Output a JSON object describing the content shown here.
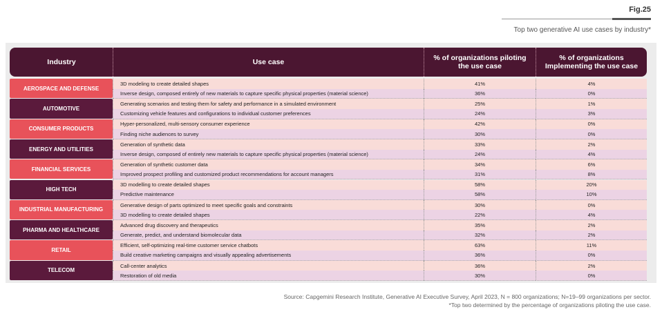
{
  "figure": {
    "label": "Fig.25",
    "subtitle": "Top two generative AI use cases by industry*"
  },
  "table": {
    "header": [
      "Industry",
      "Use case",
      "% of organizations piloting the use case",
      "% of organizations Implementing the use case"
    ],
    "rows": [
      {
        "industry": "AEROSPACE AND DEFENSE",
        "cases": [
          {
            "use_case": "3D modeling to create detailed shapes",
            "piloting": "41%",
            "implementing": "4%"
          },
          {
            "use_case": "Inverse design, composed entirely of new materials to capture specific physical properties (material science)",
            "piloting": "36%",
            "implementing": "0%"
          }
        ]
      },
      {
        "industry": "AUTOMOTIVE",
        "cases": [
          {
            "use_case": "Generating scenarios and testing them for safety and performance in a simulated environment",
            "piloting": "25%",
            "implementing": "1%"
          },
          {
            "use_case": "Customizing vehicle features and configurations to individual customer preferences",
            "piloting": "24%",
            "implementing": "3%"
          }
        ]
      },
      {
        "industry": "CONSUMER PRODUCTS",
        "cases": [
          {
            "use_case": "Hyper-personalized, multi-sensory consumer experience",
            "piloting": "42%",
            "implementing": "0%"
          },
          {
            "use_case": "Finding niche audiences to survey",
            "piloting": "30%",
            "implementing": "0%"
          }
        ]
      },
      {
        "industry": "ENERGY AND UTILITIES",
        "cases": [
          {
            "use_case": "Generation of synthetic data",
            "piloting": "33%",
            "implementing": "2%"
          },
          {
            "use_case": "Inverse design, composed of entirely new materials to capture specific physical properties (material science)",
            "piloting": "24%",
            "implementing": "4%"
          }
        ]
      },
      {
        "industry": "FINANCIAL SERVICES",
        "cases": [
          {
            "use_case": "Generation of synthetic customer data",
            "piloting": "34%",
            "implementing": "6%"
          },
          {
            "use_case": "Improved prospect profiling and customized product recommendations for account managers",
            "piloting": "31%",
            "implementing": "8%"
          }
        ]
      },
      {
        "industry": "HIGH TECH",
        "cases": [
          {
            "use_case": "3D modelling to create detailed shapes",
            "piloting": "58%",
            "implementing": "20%"
          },
          {
            "use_case": "Predictive maintenance",
            "piloting": "58%",
            "implementing": "10%"
          }
        ]
      },
      {
        "industry": "INDUSTRIAL MANUFACTURING",
        "cases": [
          {
            "use_case": "Generative design of parts optimized to meet specific goals and constraints",
            "piloting": "30%",
            "implementing": "0%"
          },
          {
            "use_case": "3D modelling to create detailed shapes",
            "piloting": "22%",
            "implementing": "4%"
          }
        ]
      },
      {
        "industry": "PHARMA AND HEALTHCARE",
        "cases": [
          {
            "use_case": "Advanced drug discovery and therapeutics",
            "piloting": "35%",
            "implementing": "2%"
          },
          {
            "use_case": "Generate, predict, and understand biomolecular data",
            "piloting": "32%",
            "implementing": "2%"
          }
        ]
      },
      {
        "industry": "RETAIL",
        "cases": [
          {
            "use_case": "Efficient, self-optimizing real-time customer service chatbots",
            "piloting": "63%",
            "implementing": "11%"
          },
          {
            "use_case": "Build creative marketing campaigns and visually appealing advertisements",
            "piloting": "36%",
            "implementing": "0%"
          }
        ]
      },
      {
        "industry": "TELECOM",
        "cases": [
          {
            "use_case": "Call-center analytics",
            "piloting": "36%",
            "implementing": "2%"
          },
          {
            "use_case": "Restoration of old media",
            "piloting": "30%",
            "implementing": "0%"
          }
        ]
      }
    ]
  },
  "footer": {
    "source": "Source: Capgemini Research Institute, Generative AI Executive Survey, April 2023, N = 800 organizations; N=19–99 organizations per sector.",
    "note": "*Top two determined by the percentage of organizations piloting the use case."
  }
}
